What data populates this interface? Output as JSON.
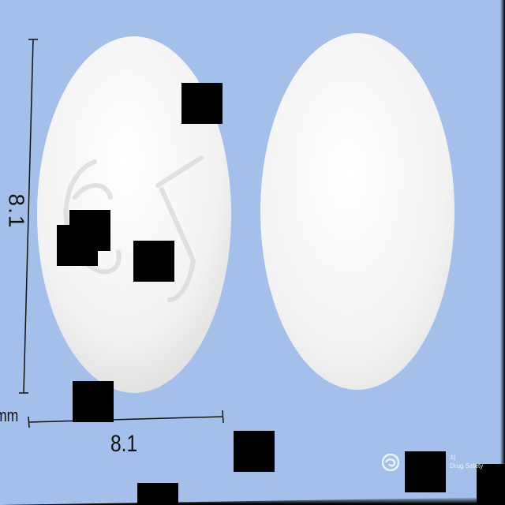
{
  "dimensions": {
    "height_label": "8.1",
    "width_label": "8.1",
    "unit_label": "mm"
  },
  "logo": {
    "text_top": "처",
    "text_bottom": "Drug Safety"
  },
  "colors": {
    "background": "#a3bfea",
    "tablet": "#f4f4f4",
    "mask": "#000000"
  }
}
